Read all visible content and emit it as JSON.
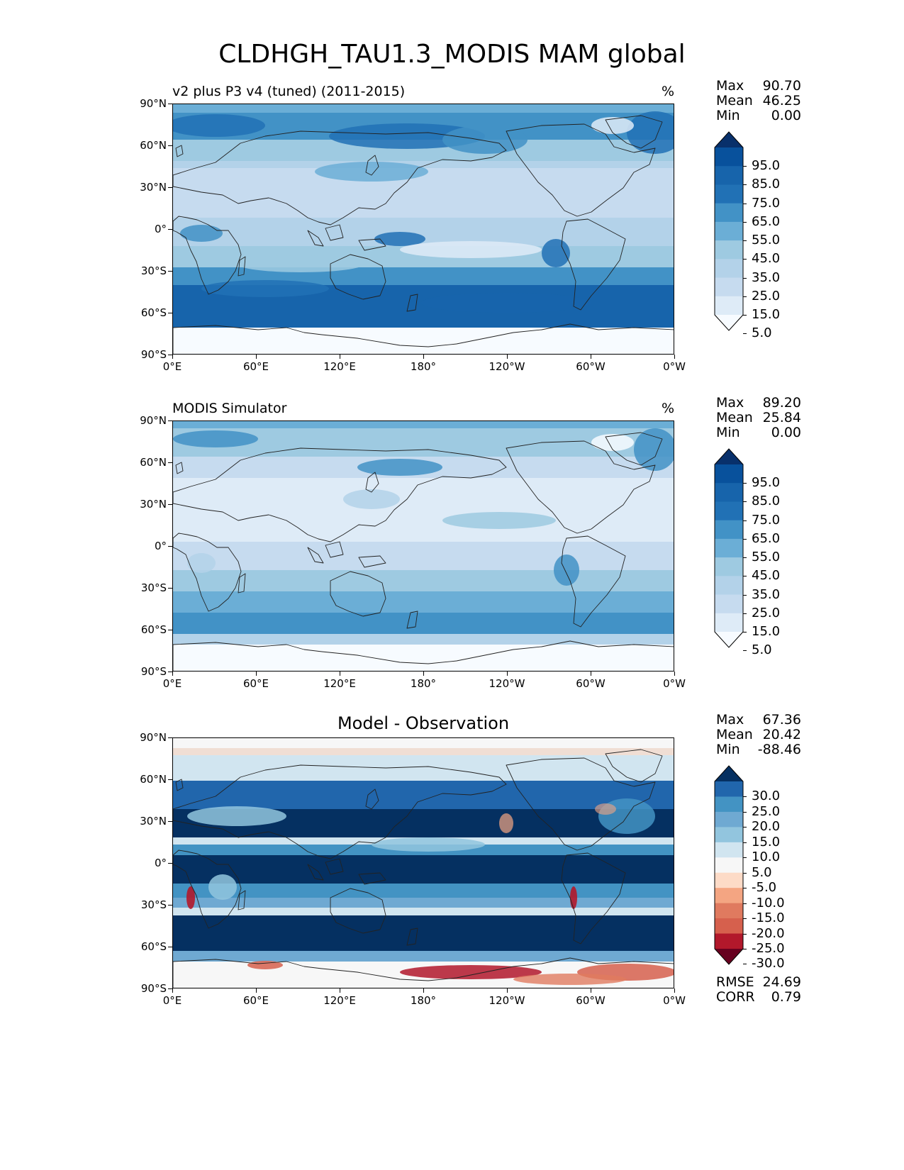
{
  "title": "CLDHGH_TAU1.3_MODIS MAM global",
  "lon_ticks": [
    "0°E",
    "60°E",
    "120°E",
    "180°",
    "120°W",
    "60°W",
    "0°W"
  ],
  "lat_ticks": [
    "90°N",
    "60°N",
    "30°N",
    "0°",
    "30°S",
    "60°S",
    "90°S"
  ],
  "panels": [
    {
      "label": "v2 plus P3 v4 (tuned) (2011-2015)",
      "unit": "%",
      "stats": [
        {
          "name": "Max",
          "value": "90.70"
        },
        {
          "name": "Mean",
          "value": "46.25"
        },
        {
          "name": "Min",
          "value": "0.00"
        }
      ],
      "colorbar": [
        "95.0",
        "85.0",
        "75.0",
        "65.0",
        "55.0",
        "45.0",
        "35.0",
        "25.0",
        "15.0",
        "5.0"
      ]
    },
    {
      "label": "MODIS Simulator",
      "unit": "%",
      "stats": [
        {
          "name": "Max",
          "value": "89.20"
        },
        {
          "name": "Mean",
          "value": "25.84"
        },
        {
          "name": "Min",
          "value": "0.00"
        }
      ],
      "colorbar": [
        "95.0",
        "85.0",
        "75.0",
        "65.0",
        "55.0",
        "45.0",
        "35.0",
        "25.0",
        "15.0",
        "5.0"
      ]
    },
    {
      "label": "Model - Observation",
      "unit": "",
      "stats": [
        {
          "name": "Max",
          "value": "67.36"
        },
        {
          "name": "Mean",
          "value": "20.42"
        },
        {
          "name": "Min",
          "value": "-88.46"
        }
      ],
      "colorbar": [
        "30.0",
        "25.0",
        "20.0",
        "15.0",
        "10.0",
        "5.0",
        "-5.0",
        "-10.0",
        "-15.0",
        "-20.0",
        "-25.0",
        "-30.0"
      ],
      "metrics": [
        {
          "name": "RMSE",
          "value": "24.69"
        },
        {
          "name": "CORR",
          "value": "0.79"
        }
      ]
    }
  ],
  "colors": {
    "blues": [
      "#f7fbff",
      "#deebf7",
      "#c6dbef",
      "#b3d2e9",
      "#9ecae1",
      "#6baed6",
      "#4292c6",
      "#2171b5",
      "#1764ab",
      "#08519c",
      "#08306b"
    ],
    "diverging": [
      "#053061",
      "#2166ac",
      "#4393c3",
      "#6fa9d2",
      "#92c5de",
      "#d1e5f0",
      "#f7f7f7",
      "#fddbc7",
      "#f4a582",
      "#e07a5f",
      "#d6604d",
      "#b2182b",
      "#67001f"
    ]
  }
}
